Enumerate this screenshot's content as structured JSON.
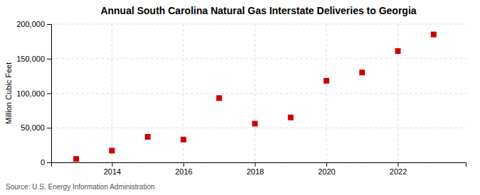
{
  "chart_data": {
    "type": "scatter",
    "title": "Annual South Carolina Natural Gas Interstate Deliveries to Georgia",
    "ylabel": "Million Cubic Feet",
    "annotation": "Source: U.S. Energy Information Administration",
    "x": [
      2013,
      2014,
      2015,
      2016,
      2017,
      2018,
      2019,
      2020,
      2021,
      2022,
      2023
    ],
    "values": [
      5000,
      17000,
      37000,
      33000,
      93000,
      56000,
      65000,
      118000,
      130000,
      161000,
      185000
    ],
    "color": "#cc0000",
    "marker": "square",
    "xlim": [
      2012.3,
      2023.9
    ],
    "xticks": [
      2014,
      2016,
      2018,
      2020,
      2022
    ],
    "ylim": [
      0,
      200000
    ],
    "yticks": [
      0,
      {
        "value": 50000,
        "label": "50,000"
      },
      {
        "value": 100000,
        "label": "100,000"
      },
      {
        "value": 150000,
        "label": "150,000"
      },
      {
        "value": 200000,
        "label": "200,000"
      }
    ],
    "grid": true
  }
}
